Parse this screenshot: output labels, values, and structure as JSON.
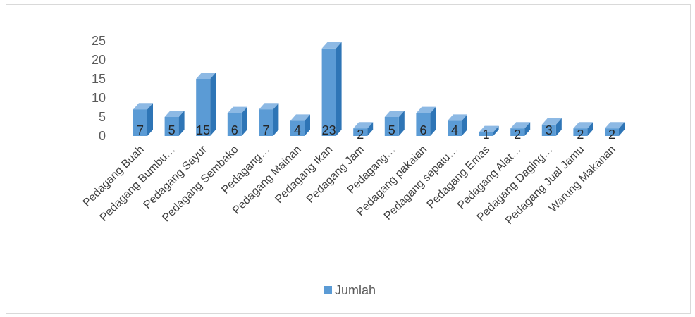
{
  "chart_data": {
    "type": "bar",
    "style": "3d-clustered-column",
    "categories": [
      "Pedagang Buah",
      "Pedagang Bumbu…",
      "Pedagang Sayur",
      "Pedagang Sembako",
      "Pedagang…",
      "Pedagang Mainan",
      "Pedagang Ikan",
      "Pedagang Jam",
      "Pedagang…",
      "Pedagang pakaian",
      "Pedagang sepatu…",
      "Pedagang Emas",
      "Pedagang Alat…",
      "Pedagang Daging…",
      "Pedagang Jual Jamu",
      "Warung Makanan"
    ],
    "series": [
      {
        "name": "Jumlah",
        "values": [
          7,
          5,
          15,
          6,
          7,
          4,
          23,
          2,
          5,
          6,
          4,
          1,
          2,
          3,
          2,
          2
        ]
      }
    ],
    "yticks": [
      "0",
      "5",
      "10",
      "15",
      "20",
      "25"
    ],
    "ylim": [
      0,
      25
    ],
    "grid": false,
    "data_labels": true,
    "legend": "bottom",
    "colors": {
      "bar_front": "#5b9bd5",
      "bar_side": "#2e75b6",
      "bar_top": "#8db9e4"
    }
  }
}
